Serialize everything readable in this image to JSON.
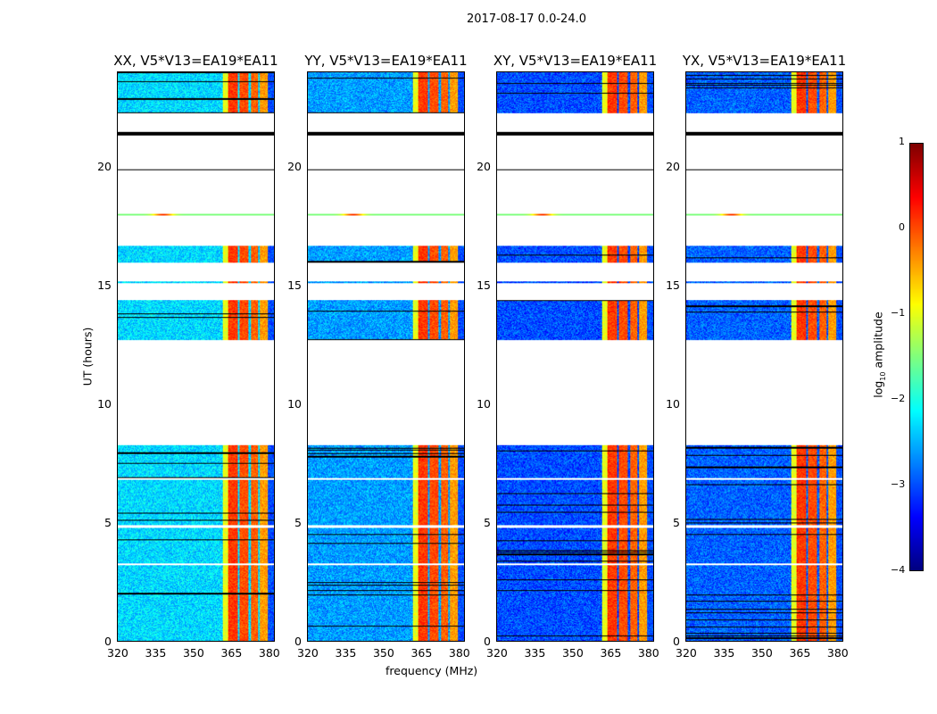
{
  "chart_data": {
    "type": "heatmap",
    "title": "2017-08-17 0.0-24.0",
    "xlabel": "frequency (MHz)",
    "ylabel": "UT (hours)",
    "xlim": [
      320,
      382.5
    ],
    "ylim": [
      0,
      24
    ],
    "xticks": [
      "320",
      "335",
      "350",
      "365",
      "380"
    ],
    "xtick_values": [
      320,
      335,
      350,
      365,
      380
    ],
    "yticks": [
      "0",
      "5",
      "10",
      "15",
      "20"
    ],
    "ytick_values": [
      0,
      5,
      10,
      15,
      20
    ],
    "panels": [
      {
        "title": "XX, V5*V13=EA19*EA11",
        "background_level": -2.3
      },
      {
        "title": "YY, V5*V13=EA19*EA11",
        "background_level": -2.6
      },
      {
        "title": "XY, V5*V13=EA19*EA11",
        "background_level": -3.0
      },
      {
        "title": "YX, V5*V13=EA19*EA11",
        "background_level": -2.9
      }
    ],
    "data_time_ranges_hours": [
      [
        0.0,
        3.2
      ],
      [
        3.3,
        4.8
      ],
      [
        4.9,
        6.8
      ],
      [
        6.9,
        8.3
      ],
      [
        12.7,
        14.4
      ],
      [
        15.1,
        15.2
      ],
      [
        16.0,
        16.7
      ],
      [
        17.98,
        18.05
      ],
      [
        19.88,
        19.92
      ],
      [
        21.35,
        21.5
      ],
      [
        22.3,
        24.0
      ]
    ],
    "rfi_bands_mhz": [
      [
        362,
        364,
        -1.0
      ],
      [
        364,
        368,
        0.1
      ],
      [
        368.5,
        372,
        0.0
      ],
      [
        373,
        376,
        -0.1
      ],
      [
        376.5,
        380,
        -0.4
      ]
    ],
    "colorbar": {
      "label": "log10 amplitude",
      "label_main": "log",
      "label_sub": "10",
      "label_rest": " amplitude",
      "colormap": "jet",
      "range": [
        -4,
        1
      ],
      "ticks": [
        "1",
        "0",
        "−1",
        "−2",
        "−3",
        "−4"
      ],
      "tick_values": [
        1,
        0,
        -1,
        -2,
        -3,
        -4
      ]
    }
  }
}
